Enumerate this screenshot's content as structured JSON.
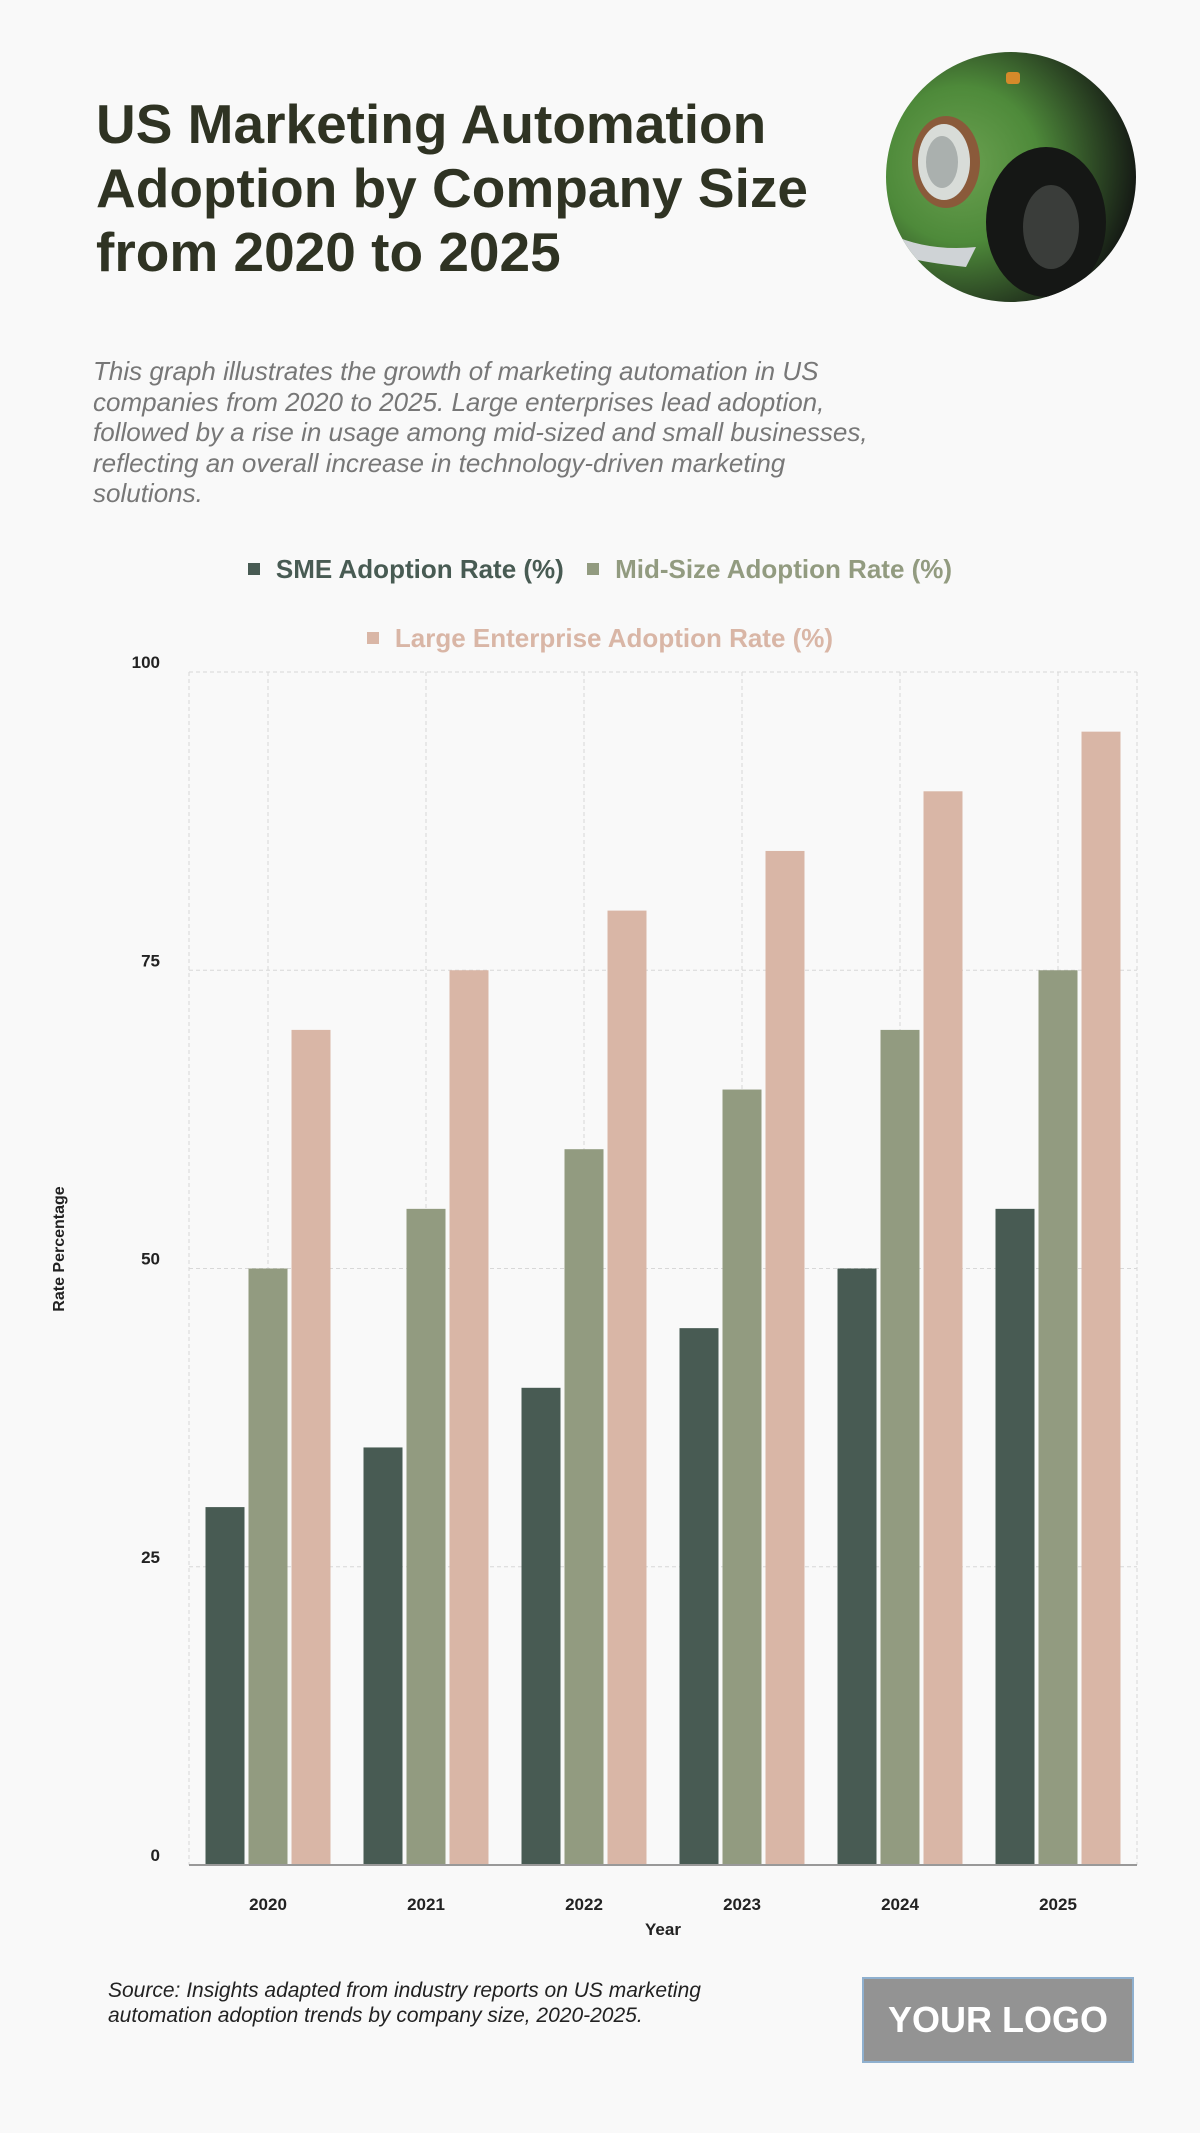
{
  "header": {
    "title": "US Marketing Automation Adoption by Company Size from 2020 to 2025",
    "description": "This graph illustrates the growth of marketing automation in US companies from 2020 to 2025. Large enterprises lead adoption, followed by a rise in usage among mid-sized and small businesses, reflecting an overall increase in technology-driven marketing solutions."
  },
  "footer": {
    "source": "Source: Insights adapted from industry reports on US marketing automation adoption trends by company size, 2020-2025.",
    "logo": "YOUR LOGO"
  },
  "chart_data": {
    "type": "bar",
    "categories": [
      "2020",
      "2021",
      "2022",
      "2023",
      "2024",
      "2025"
    ],
    "series": [
      {
        "name": "SME Adoption Rate (%)",
        "color": "#485b53",
        "values": [
          30,
          35,
          40,
          45,
          50,
          55
        ]
      },
      {
        "name": "Mid-Size Adoption Rate (%)",
        "color": "#929b80",
        "values": [
          50,
          55,
          60,
          65,
          70,
          75
        ]
      },
      {
        "name": "Large Enterprise Adoption Rate (%)",
        "color": "#d9b6a6",
        "values": [
          70,
          75,
          80,
          85,
          90,
          95
        ]
      }
    ],
    "xlabel": "Year",
    "ylabel": "Rate Percentage",
    "ylim": [
      0,
      100
    ],
    "yticks": [
      "0",
      "25",
      "50",
      "75",
      "100"
    ],
    "grid": true,
    "legend": "top"
  }
}
